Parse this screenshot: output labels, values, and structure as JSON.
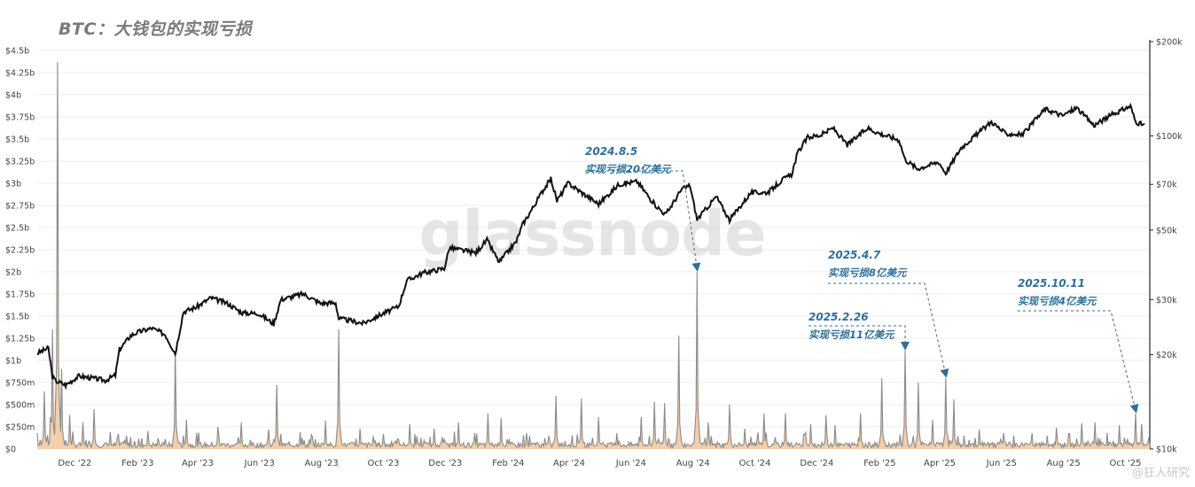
{
  "title": "BTC：大钱包的实现亏损",
  "watermark": "glassnode",
  "credit": "@狂人研究",
  "colors": {
    "price_line": "#111111",
    "loss_line": "#8a8a8a",
    "loss_fill": "#f1c79b",
    "annotation": "#2f6f9a",
    "grid": "#ececec",
    "axis_text": "#444444"
  },
  "chart_data": {
    "type": "line",
    "x_range": [
      "2022-10-25",
      "2025-10-25"
    ],
    "x_ticks": [
      "Dec '22",
      "Feb '23",
      "Apr '23",
      "Jun '23",
      "Aug '23",
      "Oct '23",
      "Dec '23",
      "Feb '24",
      "Apr '24",
      "Jun '24",
      "Aug '24",
      "Oct '24",
      "Dec '24",
      "Feb '25",
      "Apr '25",
      "Jun '25",
      "Aug '25",
      "Oct '25"
    ],
    "y_left": {
      "label": "",
      "range": [
        0,
        4500000000
      ],
      "ticks": [
        "$0",
        "$250m",
        "$500m",
        "$750m",
        "$1b",
        "$1.25b",
        "$1.5b",
        "$1.75b",
        "$2b",
        "$2.25b",
        "$2.5b",
        "$2.75b",
        "$3b",
        "$3.25b",
        "$3.5b",
        "$3.75b",
        "$4b",
        "$4.25b",
        "$4.5b"
      ]
    },
    "y_right": {
      "label": "",
      "scale": "log",
      "range": [
        10000,
        200000
      ],
      "ticks": [
        {
          "label": "$10k",
          "value": 10000
        },
        {
          "label": "$20k",
          "value": 20000
        },
        {
          "label": "$30k",
          "value": 30000
        },
        {
          "label": "$50k",
          "value": 50000
        },
        {
          "label": "$70k",
          "value": 70000
        },
        {
          "label": "$100k",
          "value": 100000
        },
        {
          "label": "$200k",
          "value": 200000
        }
      ]
    },
    "grid": true,
    "series": [
      {
        "axis": "right",
        "points": [
          [
            "2022-10-25",
            20200
          ],
          [
            "2022-11-05",
            21000
          ],
          [
            "2022-11-09",
            17000
          ],
          [
            "2022-11-12",
            16500
          ],
          [
            "2022-11-22",
            16000
          ],
          [
            "2022-12-05",
            17100
          ],
          [
            "2022-12-20",
            16800
          ],
          [
            "2022-12-31",
            16550
          ],
          [
            "2023-01-10",
            17200
          ],
          [
            "2023-01-14",
            20800
          ],
          [
            "2023-01-25",
            23000
          ],
          [
            "2023-02-01",
            23600
          ],
          [
            "2023-02-15",
            24300
          ],
          [
            "2023-02-28",
            23200
          ],
          [
            "2023-03-10",
            20200
          ],
          [
            "2023-03-18",
            27400
          ],
          [
            "2023-03-31",
            28400
          ],
          [
            "2023-04-14",
            30400
          ],
          [
            "2023-04-30",
            29200
          ],
          [
            "2023-05-15",
            27200
          ],
          [
            "2023-05-31",
            27100
          ],
          [
            "2023-06-15",
            25100
          ],
          [
            "2023-06-22",
            30000
          ],
          [
            "2023-07-14",
            31300
          ],
          [
            "2023-07-31",
            29200
          ],
          [
            "2023-08-15",
            29300
          ],
          [
            "2023-08-18",
            26100
          ],
          [
            "2023-09-11",
            25200
          ],
          [
            "2023-09-30",
            27000
          ],
          [
            "2023-10-16",
            28500
          ],
          [
            "2023-10-24",
            34500
          ],
          [
            "2023-11-09",
            36500
          ],
          [
            "2023-11-30",
            37700
          ],
          [
            "2023-12-05",
            43900
          ],
          [
            "2023-12-31",
            42300
          ],
          [
            "2024-01-11",
            46500
          ],
          [
            "2024-01-23",
            39500
          ],
          [
            "2024-02-09",
            46000
          ],
          [
            "2024-02-15",
            52000
          ],
          [
            "2024-02-28",
            61000
          ],
          [
            "2024-03-05",
            66000
          ],
          [
            "2024-03-14",
            73000
          ],
          [
            "2024-03-20",
            62000
          ],
          [
            "2024-03-31",
            70700
          ],
          [
            "2024-04-13",
            66000
          ],
          [
            "2024-04-30",
            60600
          ],
          [
            "2024-05-20",
            70000
          ],
          [
            "2024-06-07",
            71500
          ],
          [
            "2024-06-24",
            60500
          ],
          [
            "2024-07-05",
            56000
          ],
          [
            "2024-07-21",
            67500
          ],
          [
            "2024-07-29",
            69500
          ],
          [
            "2024-08-05",
            54000
          ],
          [
            "2024-08-24",
            64000
          ],
          [
            "2024-09-06",
            53800
          ],
          [
            "2024-09-27",
            65800
          ],
          [
            "2024-10-14",
            66000
          ],
          [
            "2024-10-29",
            72700
          ],
          [
            "2024-11-06",
            75000
          ],
          [
            "2024-11-12",
            88000
          ],
          [
            "2024-11-22",
            99000
          ],
          [
            "2024-12-05",
            100500
          ],
          [
            "2024-12-17",
            106000
          ],
          [
            "2024-12-31",
            93500
          ],
          [
            "2025-01-20",
            106000
          ],
          [
            "2025-01-31",
            102000
          ],
          [
            "2025-02-20",
            97000
          ],
          [
            "2025-02-26",
            84000
          ],
          [
            "2025-03-10",
            78500
          ],
          [
            "2025-03-31",
            82500
          ],
          [
            "2025-04-07",
            76000
          ],
          [
            "2025-04-22",
            91500
          ],
          [
            "2025-05-22",
            111000
          ],
          [
            "2025-06-05",
            101500
          ],
          [
            "2025-06-22",
            101000
          ],
          [
            "2025-07-14",
            122000
          ],
          [
            "2025-07-31",
            116000
          ],
          [
            "2025-08-14",
            123000
          ],
          [
            "2025-08-31",
            108000
          ],
          [
            "2025-09-18",
            117000
          ],
          [
            "2025-10-06",
            124500
          ],
          [
            "2025-10-11",
            111000
          ],
          [
            "2025-10-20",
            108000
          ]
        ]
      },
      {
        "axis": "left",
        "spikes": [
          [
            "2022-10-25",
            180000000
          ],
          [
            "2022-11-01",
            650000000
          ],
          [
            "2022-11-07",
            360000000
          ],
          [
            "2022-11-09",
            1350000000
          ],
          [
            "2022-11-14",
            4370000000
          ],
          [
            "2022-11-18",
            900000000
          ],
          [
            "2022-11-26",
            380000000
          ],
          [
            "2022-12-09",
            300000000
          ],
          [
            "2022-12-20",
            450000000
          ],
          [
            "2023-01-05",
            190000000
          ],
          [
            "2023-01-21",
            150000000
          ],
          [
            "2023-02-11",
            200000000
          ],
          [
            "2023-03-10",
            1100000000
          ],
          [
            "2023-03-21",
            330000000
          ],
          [
            "2023-04-21",
            250000000
          ],
          [
            "2023-05-14",
            300000000
          ],
          [
            "2023-06-10",
            220000000
          ],
          [
            "2023-06-18",
            720000000
          ],
          [
            "2023-07-11",
            190000000
          ],
          [
            "2023-08-05",
            320000000
          ],
          [
            "2023-08-18",
            1350000000
          ],
          [
            "2023-09-08",
            230000000
          ],
          [
            "2023-10-01",
            170000000
          ],
          [
            "2023-10-27",
            280000000
          ],
          [
            "2023-11-20",
            230000000
          ],
          [
            "2023-12-14",
            300000000
          ],
          [
            "2024-01-12",
            400000000
          ],
          [
            "2024-01-25",
            350000000
          ],
          [
            "2024-02-19",
            180000000
          ],
          [
            "2024-03-19",
            600000000
          ],
          [
            "2024-04-13",
            570000000
          ],
          [
            "2024-04-30",
            360000000
          ],
          [
            "2024-05-18",
            180000000
          ],
          [
            "2024-06-11",
            360000000
          ],
          [
            "2024-06-24",
            530000000
          ],
          [
            "2024-07-04",
            520000000
          ],
          [
            "2024-07-18",
            1280000000
          ],
          [
            "2024-08-05",
            2000000000
          ],
          [
            "2024-08-16",
            300000000
          ],
          [
            "2024-09-06",
            500000000
          ],
          [
            "2024-09-21",
            230000000
          ],
          [
            "2024-10-10",
            400000000
          ],
          [
            "2024-10-31",
            400000000
          ],
          [
            "2024-11-25",
            280000000
          ],
          [
            "2024-12-10",
            380000000
          ],
          [
            "2024-12-19",
            270000000
          ],
          [
            "2025-01-13",
            400000000
          ],
          [
            "2025-02-03",
            800000000
          ],
          [
            "2025-02-26",
            1110000000
          ],
          [
            "2025-03-11",
            750000000
          ],
          [
            "2025-03-25",
            330000000
          ],
          [
            "2025-04-07",
            800000000
          ],
          [
            "2025-04-15",
            560000000
          ],
          [
            "2025-05-10",
            220000000
          ],
          [
            "2025-06-03",
            180000000
          ],
          [
            "2025-07-01",
            180000000
          ],
          [
            "2025-07-25",
            240000000
          ],
          [
            "2025-08-19",
            290000000
          ],
          [
            "2025-09-01",
            300000000
          ],
          [
            "2025-09-25",
            270000000
          ],
          [
            "2025-10-11",
            400000000
          ],
          [
            "2025-10-17",
            280000000
          ]
        ]
      }
    ],
    "annotations": [
      {
        "date": "2025.4.7",
        "text": "实现亏损8亿美元",
        "x": "2025-04-07",
        "y": 800000000
      },
      {
        "date": "2025.10.11",
        "text": "实现亏损4亿美元",
        "x": "2025-10-11",
        "y": 400000000
      },
      {
        "date": "2024.8.5",
        "text": "实现亏损20亿美元",
        "x": "2024-08-05",
        "y": 2000000000
      },
      {
        "date": "2025.2.26",
        "text": "实现亏损11亿美元",
        "x": "2025-02-26",
        "y": 1110000000
      }
    ]
  }
}
